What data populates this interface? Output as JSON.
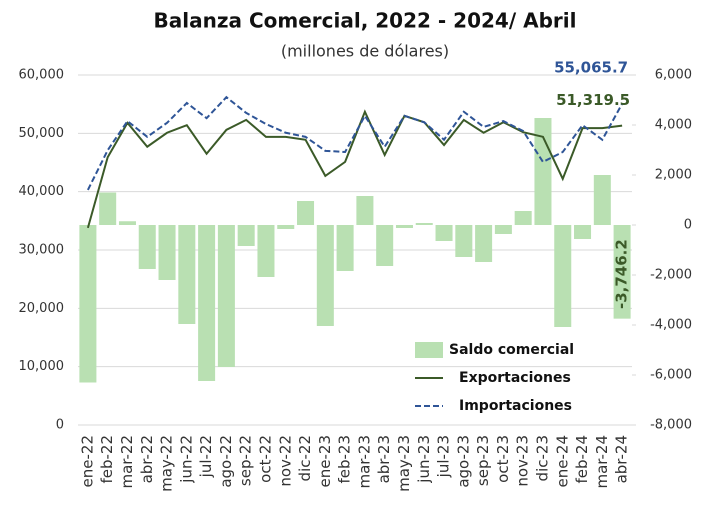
{
  "chart_data": {
    "type": "combo",
    "title": "Balanza Comercial, 2022 - 2024/ Abril",
    "subtitle": "(millones de dólares)",
    "categories": [
      "ene-22",
      "feb-22",
      "mar-22",
      "abr-22",
      "may-22",
      "jun-22",
      "jul-22",
      "ago-22",
      "sep-22",
      "oct-22",
      "nov-22",
      "dic-22",
      "ene-23",
      "feb-23",
      "mar-23",
      "abr-23",
      "may-23",
      "jun-23",
      "jul-23",
      "ago-23",
      "sep-23",
      "oct-23",
      "nov-23",
      "dic-23",
      "ene-24",
      "feb-24",
      "mar-24",
      "abr-24"
    ],
    "series": [
      {
        "name": "Saldo comercial",
        "type": "bar",
        "axis": "y2",
        "color": "#b9e0b2",
        "values": [
          -6300,
          1300,
          150,
          -1760,
          -2200,
          -3960,
          -6240,
          -5680,
          -840,
          -2080,
          -160,
          960,
          -4040,
          -1840,
          1160,
          -1640,
          -120,
          80,
          -640,
          -1280,
          -1480,
          -360,
          560,
          4280,
          -4080,
          -560,
          2000,
          -3746.2
        ],
        "value_labels": [
          null,
          null,
          null,
          null,
          null,
          null,
          null,
          null,
          null,
          null,
          null,
          null,
          null,
          null,
          null,
          null,
          null,
          null,
          null,
          null,
          null,
          null,
          null,
          null,
          null,
          null,
          null,
          "-3,746.2"
        ]
      },
      {
        "name": "Exportaciones",
        "type": "line",
        "color": "#3b5a28",
        "values": [
          33800,
          45900,
          51800,
          47700,
          50100,
          51400,
          46500,
          50600,
          52300,
          49400,
          49400,
          48900,
          42700,
          45100,
          53700,
          46300,
          53000,
          51900,
          48000,
          52300,
          50100,
          51900,
          50200,
          49400,
          42200,
          50900,
          50900,
          51319.5
        ],
        "value_labels": [
          null,
          null,
          null,
          null,
          null,
          null,
          null,
          null,
          null,
          null,
          null,
          null,
          null,
          null,
          null,
          null,
          null,
          null,
          null,
          null,
          null,
          null,
          null,
          null,
          null,
          null,
          null,
          "51,319.5"
        ]
      },
      {
        "name": "Importaciones",
        "type": "line",
        "dashed": true,
        "color": "#2f5597",
        "values": [
          40300,
          47100,
          52100,
          49400,
          51800,
          55200,
          52600,
          56200,
          53500,
          51600,
          50100,
          49400,
          47000,
          46800,
          53000,
          47700,
          53000,
          51900,
          48900,
          53700,
          51100,
          52100,
          50400,
          45100,
          46800,
          51400,
          48900,
          55065.7
        ],
        "value_labels": [
          null,
          null,
          null,
          null,
          null,
          null,
          null,
          null,
          null,
          null,
          null,
          null,
          null,
          null,
          null,
          null,
          null,
          null,
          null,
          null,
          null,
          null,
          null,
          null,
          null,
          null,
          null,
          "55,065.7"
        ]
      }
    ],
    "ylim": [
      0,
      60000
    ],
    "yticks": [
      0,
      {
        "value": 10000,
        "label": "10,000"
      },
      {
        "value": 20000,
        "label": "20,000"
      },
      {
        "value": 30000,
        "label": "30,000"
      },
      {
        "value": 40000,
        "label": "40,000"
      },
      {
        "value": 50000,
        "label": "50,000"
      },
      {
        "value": 60000,
        "label": "60,000"
      }
    ],
    "y2lim": [
      -8000,
      6000
    ],
    "y2ticks": [
      {
        "value": -8000,
        "label": "-8,000"
      },
      {
        "value": -6000,
        "label": "-6,000"
      },
      {
        "value": -4000,
        "label": "-4,000"
      },
      {
        "value": -2000,
        "label": "-2,000"
      },
      0,
      {
        "value": 2000,
        "label": "2,000"
      },
      {
        "value": 4000,
        "label": "4,000"
      },
      {
        "value": 6000,
        "label": "6,000"
      }
    ],
    "grid": true,
    "legend": "lower right"
  }
}
